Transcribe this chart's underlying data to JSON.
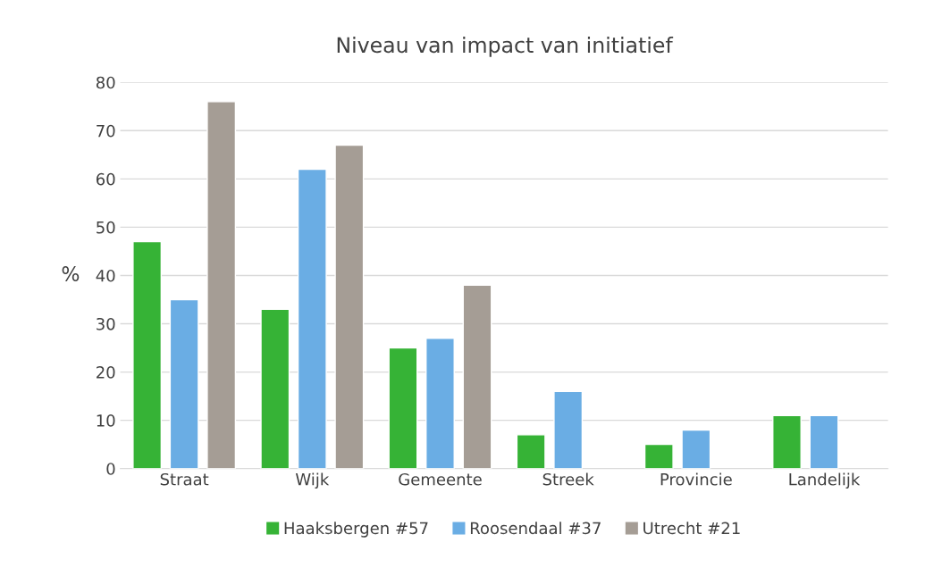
{
  "chart_data": {
    "type": "bar",
    "title": "Niveau van impact van initiatief",
    "ylabel": "%",
    "categories": [
      "Straat",
      "Wijk",
      "Gemeente",
      "Streek",
      "Provincie",
      "Landelijk"
    ],
    "series": [
      {
        "name": "Haaksbergen #57",
        "color": "#36b336",
        "values": [
          47,
          33,
          25,
          7,
          5,
          11
        ]
      },
      {
        "name": "Roosendaal #37",
        "color": "#6aade4",
        "values": [
          35,
          62,
          27,
          16,
          8,
          11
        ]
      },
      {
        "name": "Utrecht #21",
        "color": "#a59d95",
        "values": [
          76,
          67,
          38,
          null,
          null,
          null
        ]
      }
    ],
    "ylim": [
      0,
      80
    ],
    "yticks": [
      0,
      10,
      20,
      30,
      40,
      50,
      60,
      70,
      80
    ],
    "grid": "y",
    "legend": "bottom"
  }
}
